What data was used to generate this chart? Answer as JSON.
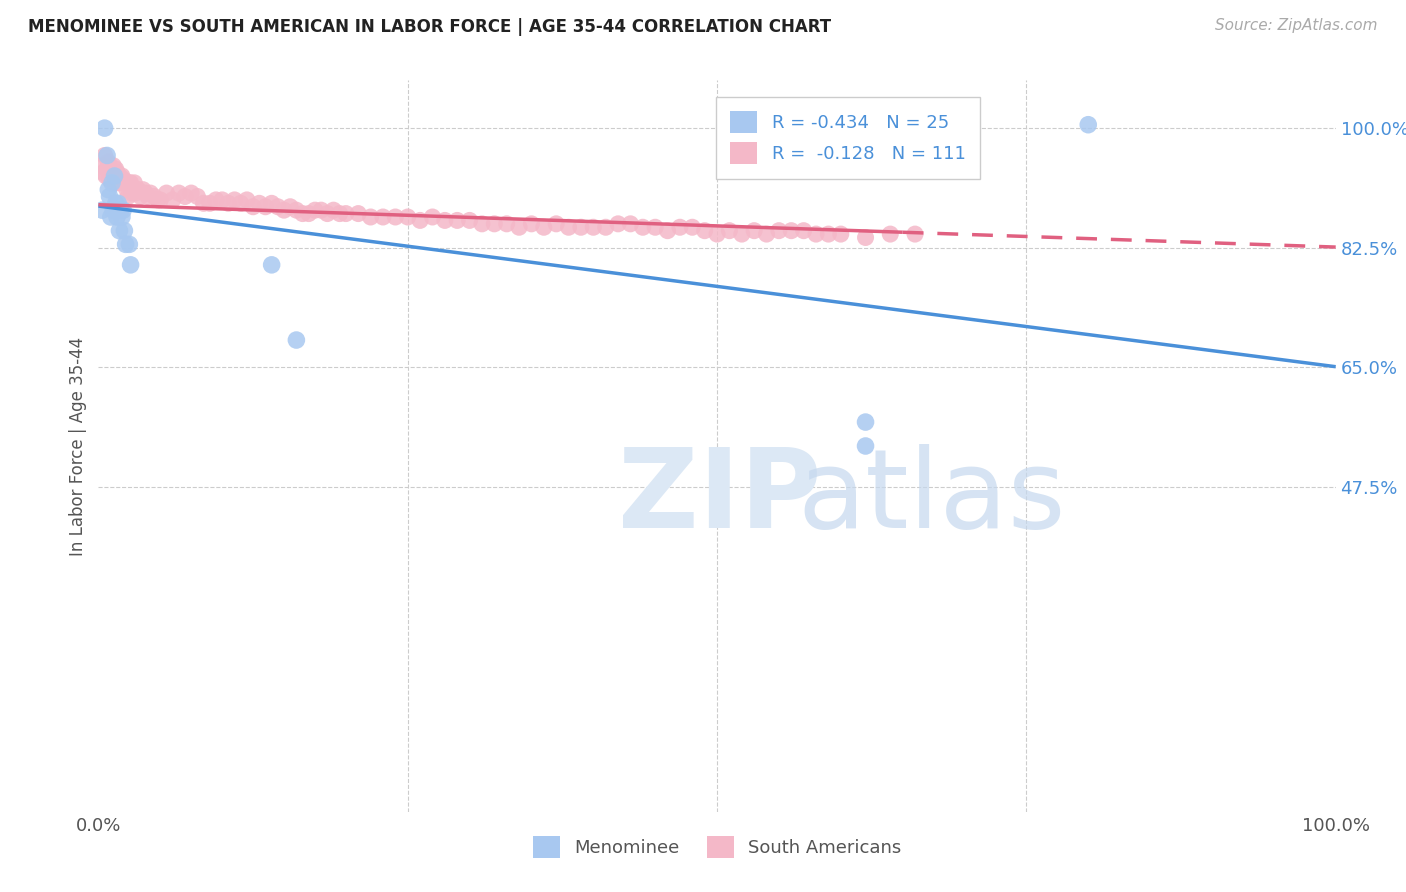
{
  "title": "MENOMINEE VS SOUTH AMERICAN IN LABOR FORCE | AGE 35-44 CORRELATION CHART",
  "source": "Source: ZipAtlas.com",
  "ylabel": "In Labor Force | Age 35-44",
  "xlim": [
    0.0,
    1.0
  ],
  "ylim": [
    0.0,
    1.07
  ],
  "ytick_vals": [
    0.475,
    0.65,
    0.825,
    1.0
  ],
  "ytick_labels": [
    "47.5%",
    "65.0%",
    "82.5%",
    "100.0%"
  ],
  "legend_r_menominee": "-0.434",
  "legend_n_menominee": "25",
  "legend_r_south": "-0.128",
  "legend_n_south": "111",
  "menominee_color": "#a8c8f0",
  "south_color": "#f4b8c8",
  "menominee_line_color": "#4a90d9",
  "south_line_color": "#e06080",
  "background_color": "#ffffff",
  "menominee_x": [
    0.003,
    0.005,
    0.007,
    0.008,
    0.009,
    0.01,
    0.011,
    0.012,
    0.013,
    0.014,
    0.015,
    0.016,
    0.017,
    0.018,
    0.019,
    0.02,
    0.021,
    0.022,
    0.025,
    0.026,
    0.14,
    0.16,
    0.62,
    0.8,
    0.62
  ],
  "menominee_y": [
    0.88,
    1.0,
    0.96,
    0.91,
    0.9,
    0.87,
    0.92,
    0.88,
    0.93,
    0.89,
    0.87,
    0.89,
    0.85,
    0.88,
    0.87,
    0.88,
    0.85,
    0.83,
    0.83,
    0.8,
    0.8,
    0.69,
    0.57,
    1.005,
    0.535
  ],
  "south_x": [
    0.003,
    0.004,
    0.005,
    0.006,
    0.007,
    0.008,
    0.009,
    0.01,
    0.01,
    0.011,
    0.012,
    0.013,
    0.014,
    0.015,
    0.016,
    0.017,
    0.018,
    0.019,
    0.02,
    0.021,
    0.022,
    0.023,
    0.024,
    0.025,
    0.026,
    0.027,
    0.028,
    0.029,
    0.03,
    0.032,
    0.034,
    0.036,
    0.038,
    0.04,
    0.042,
    0.045,
    0.048,
    0.05,
    0.055,
    0.06,
    0.065,
    0.07,
    0.075,
    0.08,
    0.085,
    0.09,
    0.095,
    0.1,
    0.105,
    0.11,
    0.115,
    0.12,
    0.125,
    0.13,
    0.135,
    0.14,
    0.145,
    0.15,
    0.155,
    0.16,
    0.165,
    0.17,
    0.175,
    0.18,
    0.185,
    0.19,
    0.195,
    0.2,
    0.21,
    0.22,
    0.23,
    0.24,
    0.25,
    0.26,
    0.27,
    0.28,
    0.29,
    0.3,
    0.31,
    0.32,
    0.33,
    0.34,
    0.35,
    0.36,
    0.37,
    0.38,
    0.39,
    0.4,
    0.41,
    0.42,
    0.43,
    0.44,
    0.45,
    0.46,
    0.47,
    0.48,
    0.49,
    0.5,
    0.51,
    0.52,
    0.53,
    0.54,
    0.55,
    0.56,
    0.57,
    0.58,
    0.59,
    0.6,
    0.62,
    0.64,
    0.66
  ],
  "south_y": [
    0.945,
    0.935,
    0.96,
    0.93,
    0.94,
    0.95,
    0.925,
    0.94,
    0.93,
    0.925,
    0.945,
    0.92,
    0.94,
    0.935,
    0.92,
    0.93,
    0.92,
    0.93,
    0.925,
    0.92,
    0.92,
    0.91,
    0.9,
    0.92,
    0.92,
    0.905,
    0.91,
    0.92,
    0.905,
    0.91,
    0.9,
    0.91,
    0.905,
    0.9,
    0.905,
    0.9,
    0.895,
    0.895,
    0.905,
    0.895,
    0.905,
    0.9,
    0.905,
    0.9,
    0.89,
    0.89,
    0.895,
    0.895,
    0.89,
    0.895,
    0.89,
    0.895,
    0.885,
    0.89,
    0.885,
    0.89,
    0.885,
    0.88,
    0.885,
    0.88,
    0.875,
    0.875,
    0.88,
    0.88,
    0.875,
    0.88,
    0.875,
    0.875,
    0.875,
    0.87,
    0.87,
    0.87,
    0.87,
    0.865,
    0.87,
    0.865,
    0.865,
    0.865,
    0.86,
    0.86,
    0.86,
    0.855,
    0.86,
    0.855,
    0.86,
    0.855,
    0.855,
    0.855,
    0.855,
    0.86,
    0.86,
    0.855,
    0.855,
    0.85,
    0.855,
    0.855,
    0.85,
    0.845,
    0.85,
    0.845,
    0.85,
    0.845,
    0.85,
    0.85,
    0.85,
    0.845,
    0.845,
    0.845,
    0.84,
    0.845,
    0.845
  ],
  "men_trend_x0": 0.0,
  "men_trend_y0": 0.886,
  "men_trend_x1": 1.0,
  "men_trend_y1": 0.651,
  "south_trend_x0": 0.0,
  "south_trend_y0": 0.888,
  "south_trend_x1": 1.0,
  "south_trend_y1": 0.826
}
